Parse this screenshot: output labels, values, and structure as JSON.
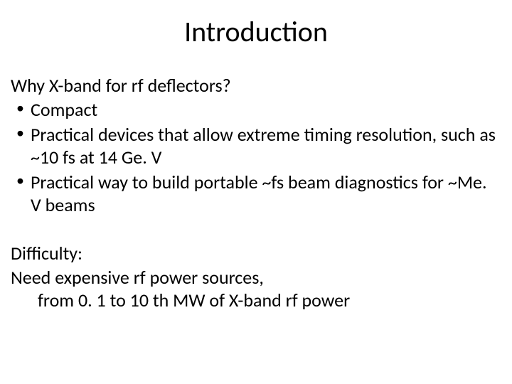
{
  "slide": {
    "title": "Introduction",
    "question": "Why X-band for rf deflectors?",
    "bullets": [
      "Compact",
      "Practical devices that allow extreme timing resolution, such as  ~10 fs at 14 Ge. V",
      "Practical way to build portable ~fs beam diagnostics for ~Me. V beams"
    ],
    "difficulty_label": "Difficulty:",
    "difficulty_line1": "Need expensive rf power sources,",
    "difficulty_line2": "from 0. 1 to 10 th MW of X-band rf power"
  },
  "style": {
    "background_color": "#ffffff",
    "text_color": "#000000",
    "font_family": "Calibri, Arial, sans-serif",
    "title_fontsize": 40,
    "body_fontsize": 26,
    "slide_width": 720,
    "slide_height": 540
  }
}
